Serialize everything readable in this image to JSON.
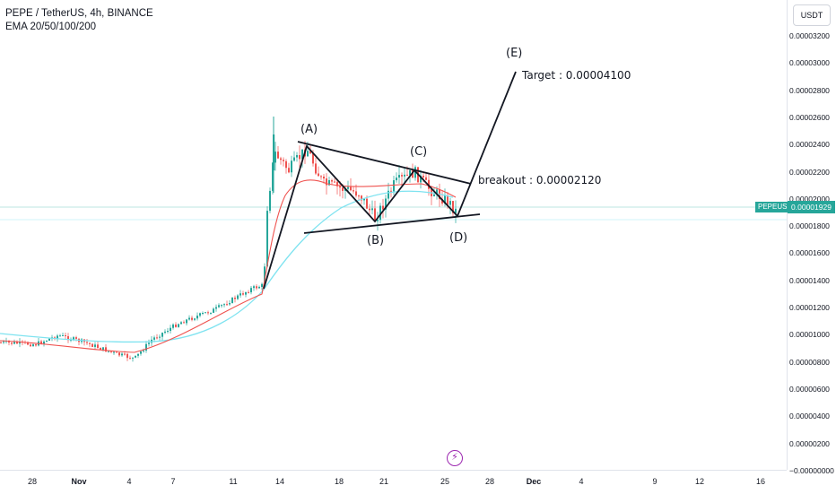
{
  "legend": {
    "symbol_line": "PEPE / TetherUS, 4h, BINANCE",
    "indicator_line": "EMA 20/50/100/200"
  },
  "price_axis": {
    "unit_label": "USDT",
    "ticks": [
      "0.00003200",
      "0.00003000",
      "0.00002800",
      "0.00002600",
      "0.00002400",
      "0.00002200",
      "0.00002000",
      "0.00001800",
      "0.00001600",
      "0.00001400",
      "0.00001200",
      "0.00001000",
      "0.00000800",
      "0.00000600",
      "0.00000400",
      "0.00000200",
      "−0.00000000"
    ],
    "current_price": "0.00001929",
    "ticker": "PEPEUSDT"
  },
  "time_axis": {
    "ticks": [
      {
        "label": "28",
        "month": false
      },
      {
        "label": "Nov",
        "month": true
      },
      {
        "label": "4",
        "month": false
      },
      {
        "label": "7",
        "month": false
      },
      {
        "label": "11",
        "month": false
      },
      {
        "label": "14",
        "month": false
      },
      {
        "label": "18",
        "month": false
      },
      {
        "label": "21",
        "month": false
      },
      {
        "label": "25",
        "month": false
      },
      {
        "label": "28",
        "month": false
      },
      {
        "label": "Dec",
        "month": true
      },
      {
        "label": "4",
        "month": false
      },
      {
        "label": "9",
        "month": false
      },
      {
        "label": "12",
        "month": false
      },
      {
        "label": "16",
        "month": false
      }
    ]
  },
  "annotations": {
    "a": "(A)",
    "b": "(B)",
    "c": "(C)",
    "d": "(D)",
    "e": "(E)",
    "target": "Target : 0.00004100",
    "breakout": "breakout : 0.00002120"
  },
  "colors": {
    "up": "#26a69a",
    "down": "#ef5350",
    "ema_fast": "#ef5350",
    "ema_slow": "#7fe3f0",
    "drawing": "#131722"
  }
}
